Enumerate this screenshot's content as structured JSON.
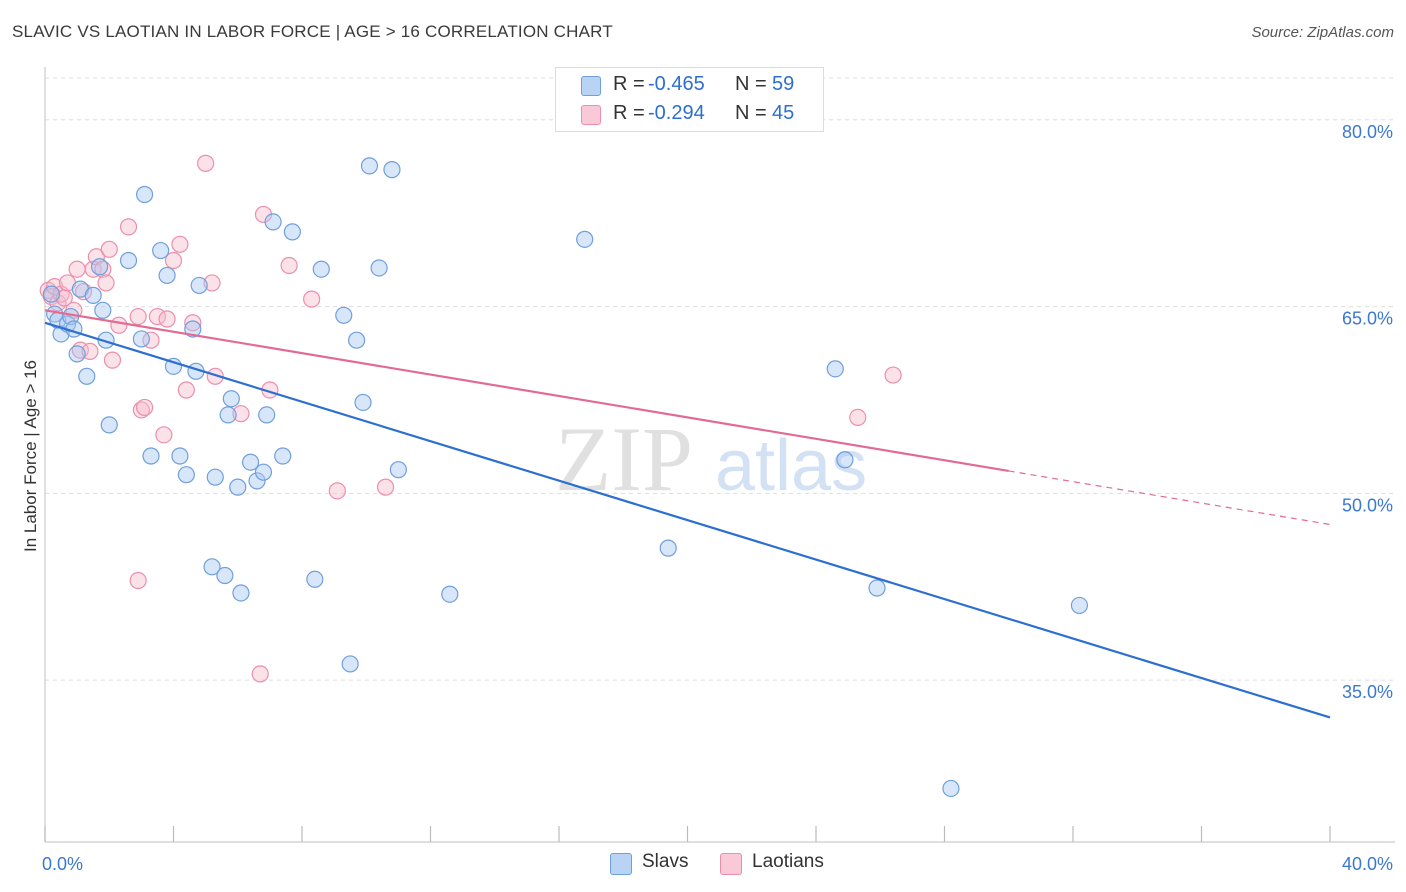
{
  "title": "SLAVIC VS LAOTIAN IN LABOR FORCE | AGE > 16 CORRELATION CHART",
  "source": "Source: ZipAtlas.com",
  "colors": {
    "slavs_fill": "#a9c8f1",
    "slavs_stroke": "#6f9fdc",
    "slavs_line": "#2c6fd1",
    "laotians_fill": "#f7bccd",
    "laotians_stroke": "#ec8fab",
    "laotians_line": "#e26b92",
    "tick_label": "#3b78d0",
    "grid": "#dddddd"
  },
  "legend": {
    "slavs": {
      "r_label": "R =",
      "r_value": "-0.465",
      "n_label": "N =",
      "n_value": "59"
    },
    "laotians": {
      "r_label": "R =",
      "r_value": "-0.294",
      "n_label": "N =",
      "n_value": "45"
    }
  },
  "chart_data": {
    "type": "scatter",
    "title": "SLAVIC VS LAOTIAN IN LABOR FORCE | AGE > 16 CORRELATION CHART",
    "xlabel": "",
    "ylabel": "In Labor Force | Age > 16",
    "xlim": [
      0,
      40
    ],
    "ylim": [
      22,
      84
    ],
    "x_ticks": [
      "0.0%",
      "40.0%"
    ],
    "y_ticks": [
      {
        "value": 35,
        "label": "35.0%"
      },
      {
        "value": 50,
        "label": "50.0%"
      },
      {
        "value": 65,
        "label": "65.0%"
      },
      {
        "value": 80,
        "label": "80.0%"
      }
    ],
    "grid": true,
    "legend_position": "bottom",
    "watermark": "ZIPatlas",
    "series": [
      {
        "name": "Slavs",
        "r": -0.465,
        "n": 59,
        "trend": {
          "x0": 0,
          "y0": 63.7,
          "x1": 40,
          "y1": 32.0,
          "dashed_from": null
        },
        "points": [
          [
            0.2,
            66.0
          ],
          [
            0.3,
            64.4
          ],
          [
            0.4,
            63.9
          ],
          [
            0.5,
            62.8
          ],
          [
            0.7,
            63.6
          ],
          [
            0.8,
            64.2
          ],
          [
            0.9,
            63.2
          ],
          [
            1.0,
            61.2
          ],
          [
            1.1,
            66.4
          ],
          [
            1.3,
            59.4
          ],
          [
            1.5,
            65.9
          ],
          [
            1.7,
            68.2
          ],
          [
            1.8,
            64.7
          ],
          [
            1.9,
            62.3
          ],
          [
            2.0,
            55.5
          ],
          [
            2.6,
            68.7
          ],
          [
            3.0,
            62.4
          ],
          [
            3.1,
            74.0
          ],
          [
            3.3,
            53.0
          ],
          [
            3.6,
            69.5
          ],
          [
            3.8,
            67.5
          ],
          [
            4.0,
            60.2
          ],
          [
            4.2,
            53.0
          ],
          [
            4.4,
            51.5
          ],
          [
            4.6,
            63.2
          ],
          [
            4.7,
            59.8
          ],
          [
            4.8,
            66.7
          ],
          [
            5.2,
            44.1
          ],
          [
            5.3,
            51.3
          ],
          [
            5.6,
            43.4
          ],
          [
            5.7,
            56.3
          ],
          [
            5.8,
            57.6
          ],
          [
            6.0,
            50.5
          ],
          [
            6.1,
            42.0
          ],
          [
            6.4,
            52.5
          ],
          [
            6.6,
            51.0
          ],
          [
            6.8,
            51.7
          ],
          [
            6.9,
            56.3
          ],
          [
            7.1,
            71.8
          ],
          [
            7.4,
            53.0
          ],
          [
            7.7,
            71.0
          ],
          [
            8.4,
            43.1
          ],
          [
            8.6,
            68.0
          ],
          [
            9.3,
            64.3
          ],
          [
            9.5,
            36.3
          ],
          [
            9.7,
            62.3
          ],
          [
            9.9,
            57.3
          ],
          [
            10.1,
            76.3
          ],
          [
            10.4,
            68.1
          ],
          [
            10.8,
            76.0
          ],
          [
            11.0,
            51.9
          ],
          [
            12.6,
            41.9
          ],
          [
            16.8,
            70.4
          ],
          [
            19.4,
            45.6
          ],
          [
            24.6,
            60.0
          ],
          [
            24.9,
            52.7
          ],
          [
            25.9,
            42.4
          ],
          [
            32.2,
            41.0
          ],
          [
            28.2,
            26.3
          ]
        ]
      },
      {
        "name": "Laotians",
        "r": -0.294,
        "n": 45,
        "trend": {
          "x0": 0,
          "y0": 64.7,
          "x1": 40,
          "y1": 47.5,
          "dashed_from": 30.0
        },
        "points": [
          [
            0.1,
            66.3
          ],
          [
            0.2,
            65.8
          ],
          [
            0.3,
            66.6
          ],
          [
            0.4,
            65.3
          ],
          [
            0.5,
            66.0
          ],
          [
            0.6,
            65.7
          ],
          [
            0.7,
            66.9
          ],
          [
            0.9,
            64.7
          ],
          [
            1.0,
            68.0
          ],
          [
            1.1,
            61.5
          ],
          [
            1.2,
            66.2
          ],
          [
            1.5,
            68.0
          ],
          [
            1.6,
            69.0
          ],
          [
            1.8,
            68.0
          ],
          [
            1.9,
            66.9
          ],
          [
            2.0,
            69.6
          ],
          [
            2.1,
            60.7
          ],
          [
            2.3,
            63.5
          ],
          [
            2.6,
            71.4
          ],
          [
            2.9,
            64.2
          ],
          [
            3.0,
            56.7
          ],
          [
            3.1,
            56.9
          ],
          [
            3.3,
            62.3
          ],
          [
            3.5,
            64.2
          ],
          [
            3.7,
            54.7
          ],
          [
            3.8,
            64.0
          ],
          [
            4.0,
            68.7
          ],
          [
            4.2,
            70.0
          ],
          [
            4.4,
            58.3
          ],
          [
            4.6,
            63.7
          ],
          [
            5.0,
            76.5
          ],
          [
            5.2,
            66.9
          ],
          [
            5.3,
            59.4
          ],
          [
            6.1,
            56.4
          ],
          [
            6.8,
            72.4
          ],
          [
            7.0,
            58.3
          ],
          [
            7.6,
            68.3
          ],
          [
            8.3,
            65.6
          ],
          [
            9.1,
            50.2
          ],
          [
            10.6,
            50.5
          ],
          [
            2.9,
            43.0
          ],
          [
            6.7,
            35.5
          ],
          [
            25.3,
            56.1
          ],
          [
            26.4,
            59.5
          ],
          [
            1.4,
            61.4
          ]
        ]
      }
    ]
  }
}
